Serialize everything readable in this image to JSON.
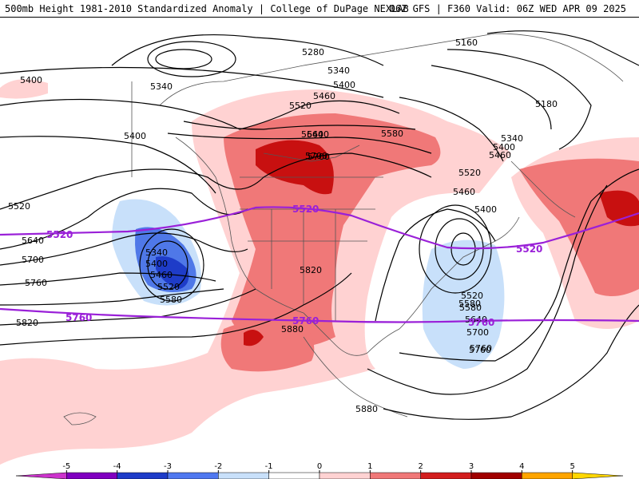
{
  "header": {
    "left": "500mb Height 1981-2010 Standardized Anomaly | College of DuPage NEXLAB",
    "right": "06Z GFS | F360 Valid: 06Z WED APR 09 2025"
  },
  "height_labels": [
    "5400",
    "5340",
    "5280",
    "5340",
    "5400",
    "5460",
    "5160",
    "5180",
    "5340",
    "5400",
    "5460",
    "5520",
    "5580",
    "5640",
    "5700",
    "5400",
    "5520",
    "5640",
    "5700",
    "5760",
    "5820",
    "5340",
    "5400",
    "5460",
    "5520",
    "5580",
    "5460",
    "5400",
    "5520",
    "5580",
    "5640",
    "5700",
    "5760",
    "5820",
    "5880",
    "5520",
    "5580",
    "5640",
    "5700",
    "5760",
    "5880"
  ],
  "reference_labels": [
    "5520",
    "5520",
    "5520",
    "5760",
    "5760",
    "5760"
  ],
  "colorbar": {
    "ticks": [
      "-5",
      "-4",
      "-3",
      "-2",
      "-1",
      "0",
      "1",
      "2",
      "3",
      "4",
      "5"
    ],
    "colors": [
      "#cc33cc",
      "#8000c0",
      "#1e3cc8",
      "#5078f0",
      "#c8e0fa",
      "#ffffff",
      "#ffd2d2",
      "#f07878",
      "#d21e1e",
      "#a00000",
      "#ffa500",
      "#ffd700"
    ]
  },
  "colors": {
    "contour": "#000000",
    "reference_line": "#9a20d8",
    "land_border": "#555555"
  }
}
